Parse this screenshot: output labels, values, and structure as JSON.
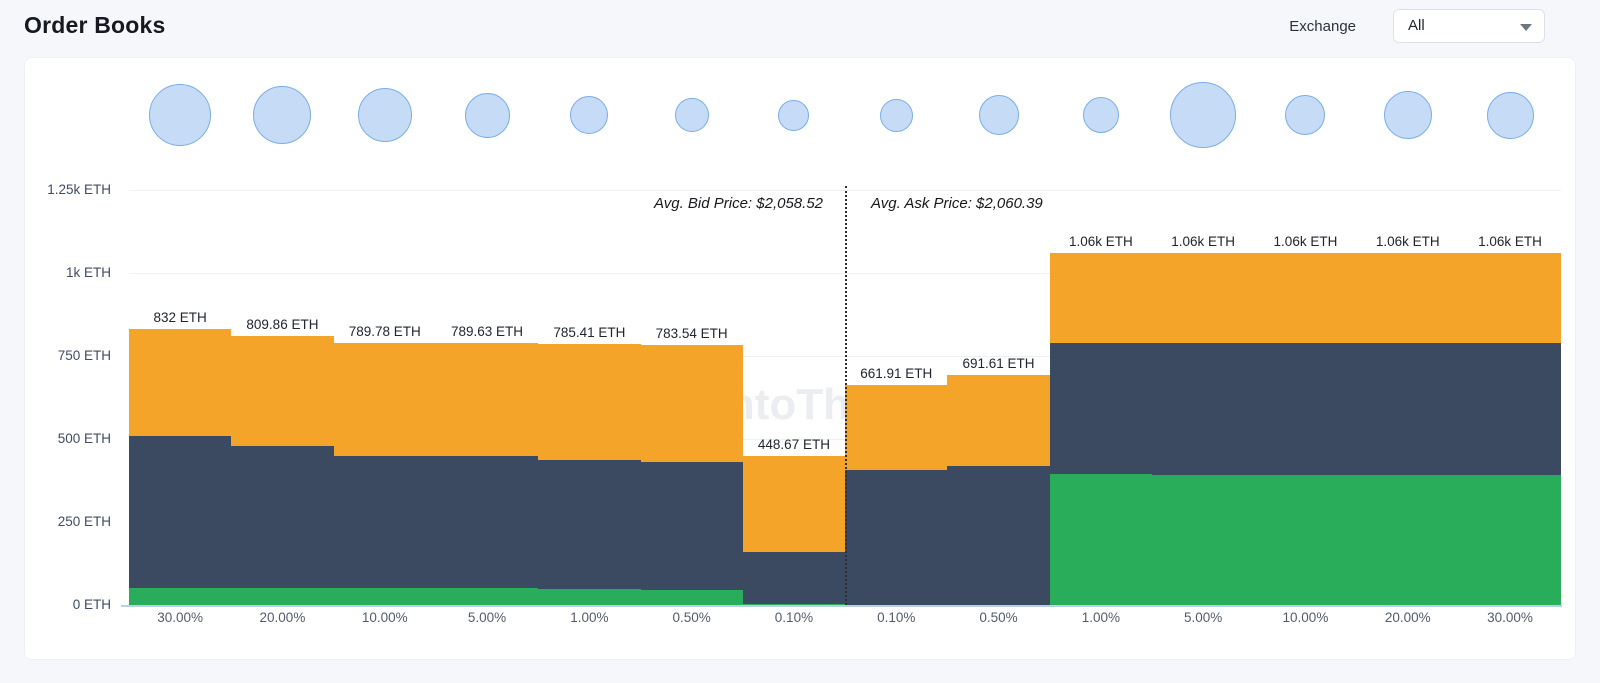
{
  "page": {
    "title": "Order Books"
  },
  "exchange_filter": {
    "label": "Exchange",
    "value": "All"
  },
  "chart_data": {
    "type": "bar",
    "stacked": true,
    "subtype": "order-book-depth",
    "watermark": "IntoTheBlock",
    "unit": "ETH",
    "ylim": [
      0,
      1385
    ],
    "grid": true,
    "annotations": {
      "avg_bid": "Avg. Bid Price: $2,058.52",
      "avg_ask": "Avg. Ask Price: $2,060.39"
    },
    "colors": {
      "green": "#2AAD5A",
      "navy": "#3C4A61",
      "orange": "#F4A428",
      "bubble_fill": "#C6DCF6",
      "bubble_stroke": "#79ADE9"
    },
    "y_axis": {
      "ticks": [
        {
          "label": "0 ETH",
          "value": 0
        },
        {
          "label": "250 ETH",
          "value": 250
        },
        {
          "label": "500 ETH",
          "value": 500
        },
        {
          "label": "750 ETH",
          "value": 750
        },
        {
          "label": "1k ETH",
          "value": 1000
        },
        {
          "label": "1.25k ETH",
          "value": 1250
        }
      ]
    },
    "bars": [
      {
        "side": "bid",
        "depth_pct": "30.00%",
        "label": "832 ETH",
        "total": 832,
        "segments": {
          "green": 50,
          "navy": 460,
          "orange": 322
        },
        "bubble_d": 62
      },
      {
        "side": "bid",
        "depth_pct": "20.00%",
        "label": "809.86 ETH",
        "total": 809.86,
        "segments": {
          "green": 50,
          "navy": 430,
          "orange": 329.86
        },
        "bubble_d": 58
      },
      {
        "side": "bid",
        "depth_pct": "10.00%",
        "label": "789.78 ETH",
        "total": 789.78,
        "segments": {
          "green": 50,
          "navy": 400,
          "orange": 339.78
        },
        "bubble_d": 54
      },
      {
        "side": "bid",
        "depth_pct": "5.00%",
        "label": "789.63 ETH",
        "total": 789.63,
        "segments": {
          "green": 50,
          "navy": 400,
          "orange": 339.63
        },
        "bubble_d": 45
      },
      {
        "side": "bid",
        "depth_pct": "1.00%",
        "label": "785.41 ETH",
        "total": 785.41,
        "segments": {
          "green": 48,
          "navy": 390,
          "orange": 347.41
        },
        "bubble_d": 38
      },
      {
        "side": "bid",
        "depth_pct": "0.50%",
        "label": "783.54 ETH",
        "total": 783.54,
        "segments": {
          "green": 46,
          "navy": 385,
          "orange": 352.54
        },
        "bubble_d": 34
      },
      {
        "side": "bid",
        "depth_pct": "0.10%",
        "label": "448.67 ETH",
        "total": 448.67,
        "segments": {
          "green": 4,
          "navy": 155,
          "orange": 289.67
        },
        "bubble_d": 31
      },
      {
        "side": "ask",
        "depth_pct": "0.10%",
        "label": "661.91 ETH",
        "total": 661.91,
        "segments": {
          "green": 0,
          "navy": 406,
          "orange": 255.91
        },
        "bubble_d": 33
      },
      {
        "side": "ask",
        "depth_pct": "0.50%",
        "label": "691.61 ETH",
        "total": 691.61,
        "segments": {
          "green": 0,
          "navy": 420,
          "orange": 271.61
        },
        "bubble_d": 40
      },
      {
        "side": "ask",
        "depth_pct": "1.00%",
        "label": "1.06k ETH",
        "total": 1060,
        "segments": {
          "green": 395,
          "navy": 395,
          "orange": 270
        },
        "bubble_d": 36
      },
      {
        "side": "ask",
        "depth_pct": "5.00%",
        "label": "1.06k ETH",
        "total": 1060,
        "segments": {
          "green": 392,
          "navy": 398,
          "orange": 270
        },
        "bubble_d": 66
      },
      {
        "side": "ask",
        "depth_pct": "10.00%",
        "label": "1.06k ETH",
        "total": 1060,
        "segments": {
          "green": 392,
          "navy": 398,
          "orange": 270
        },
        "bubble_d": 40
      },
      {
        "side": "ask",
        "depth_pct": "20.00%",
        "label": "1.06k ETH",
        "total": 1060,
        "segments": {
          "green": 392,
          "navy": 398,
          "orange": 270
        },
        "bubble_d": 48
      },
      {
        "side": "ask",
        "depth_pct": "30.00%",
        "label": "1.06k ETH",
        "total": 1060,
        "segments": {
          "green": 392,
          "navy": 398,
          "orange": 270
        },
        "bubble_d": 47
      }
    ]
  }
}
